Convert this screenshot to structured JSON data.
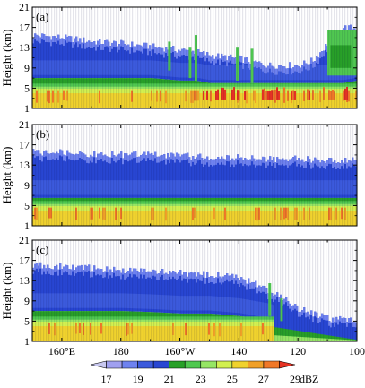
{
  "chart_data": [
    {
      "type": "heatmap",
      "panel_label": "(a)",
      "ylabel": "Height (km)",
      "ylim": [
        1,
        21
      ],
      "yticks": [
        1,
        5,
        9,
        13,
        17,
        21
      ],
      "xlim_deg_east": [
        150,
        260
      ],
      "profile": {
        "lon_deg_east": [
          150,
          160,
          170,
          180,
          190,
          200,
          205,
          210,
          220,
          230,
          240,
          245,
          250,
          255,
          260
        ],
        "echo_top_km": [
          15.5,
          15.0,
          14.2,
          13.8,
          13.2,
          12.5,
          12.2,
          11.5,
          10.8,
          9.5,
          9.5,
          10.5,
          14.0,
          17.0,
          16.8
        ],
        "cloud_base_km": [
          7.0,
          7.0,
          7.0,
          7.0,
          7.0,
          6.5,
          6.5,
          6.0,
          6.0,
          6.0,
          6.0,
          6.0,
          6.0,
          6.0,
          6.5
        ],
        "melting_layer_km": 5.0
      }
    },
    {
      "type": "heatmap",
      "panel_label": "(b)",
      "ylabel": "Height (km)",
      "ylim": [
        1,
        21
      ],
      "yticks": [
        1,
        5,
        9,
        13,
        17,
        21
      ],
      "xlim_deg_east": [
        150,
        260
      ],
      "profile": {
        "lon_deg_east": [
          150,
          160,
          170,
          180,
          190,
          200,
          210,
          220,
          230,
          240,
          250,
          260
        ],
        "echo_top_km": [
          15.5,
          15.5,
          15.2,
          15.0,
          15.0,
          14.8,
          14.5,
          14.5,
          14.2,
          14.2,
          14.0,
          14.0
        ],
        "cloud_base_km": [
          6.5,
          6.5,
          6.5,
          6.5,
          6.5,
          6.5,
          6.5,
          6.5,
          6.5,
          6.5,
          6.5,
          6.5
        ],
        "melting_layer_km": 5.0
      }
    },
    {
      "type": "heatmap",
      "panel_label": "(c)",
      "ylabel": "Height (km)",
      "ylim": [
        1,
        21
      ],
      "yticks": [
        1,
        5,
        9,
        13,
        17,
        21
      ],
      "xlim_deg_east": [
        150,
        260
      ],
      "xticks": [
        {
          "value": 160,
          "label": "160°E"
        },
        {
          "value": 180,
          "label": "180"
        },
        {
          "value": 200,
          "label": "160°W"
        },
        {
          "value": 220,
          "label": "140"
        },
        {
          "value": 240,
          "label": "120"
        },
        {
          "value": 260,
          "label": "100"
        }
      ],
      "profile": {
        "lon_deg_east": [
          150,
          160,
          170,
          180,
          190,
          200,
          210,
          220,
          225,
          230,
          235,
          240,
          250,
          260
        ],
        "echo_top_km": [
          16.0,
          15.8,
          15.5,
          15.0,
          14.8,
          14.5,
          14.2,
          13.5,
          12.5,
          11.0,
          9.5,
          7.5,
          5.5,
          5.0
        ],
        "cloud_base_km": [
          7.0,
          7.0,
          7.0,
          7.0,
          6.8,
          6.5,
          6.5,
          6.0,
          5.5,
          5.0,
          4.0,
          3.5,
          2.5,
          2.0
        ],
        "melting_layer_km": 5.0
      }
    }
  ],
  "colorbar": {
    "ticks": [
      "17",
      "19",
      "21",
      "23",
      "25",
      "27",
      "29"
    ],
    "unit": "dBZ",
    "colors": [
      "#c8c8f0",
      "#a0a0f0",
      "#6e82f0",
      "#3c5adc",
      "#2846d2",
      "#28a028",
      "#50c850",
      "#96e664",
      "#d2f050",
      "#f0d22d",
      "#f0a028",
      "#f07828",
      "#e63223"
    ]
  }
}
